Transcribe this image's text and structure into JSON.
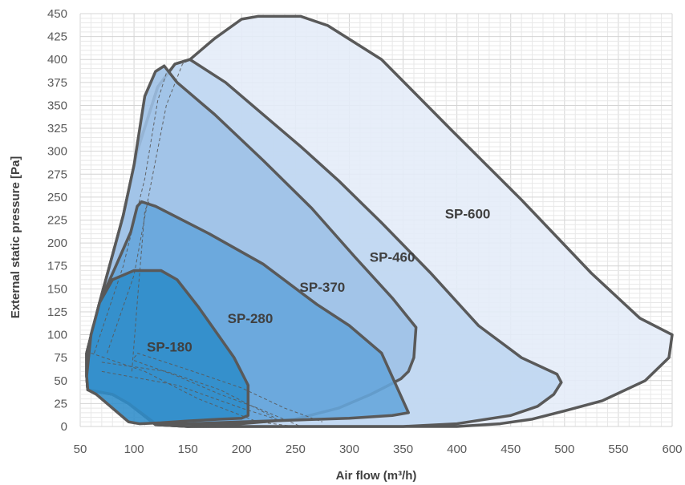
{
  "chart_data": {
    "type": "area",
    "xlabel": "Air flow (m³/h)",
    "ylabel": "External static pressure [Pa]",
    "xlim": [
      50,
      600
    ],
    "ylim": [
      0,
      450
    ],
    "x_ticks": [
      50,
      100,
      150,
      200,
      250,
      300,
      350,
      400,
      450,
      500,
      550,
      600
    ],
    "y_ticks": [
      0,
      25,
      50,
      75,
      100,
      125,
      150,
      175,
      200,
      225,
      250,
      275,
      300,
      325,
      350,
      375,
      400,
      425,
      450
    ],
    "grid": true,
    "series": [
      {
        "name": "SP-600",
        "color": "#e4ecf8",
        "label_pos": [
          410,
          232
        ],
        "points": [
          [
            56,
            80
          ],
          [
            68,
            135
          ],
          [
            90,
            230
          ],
          [
            103,
            300
          ],
          [
            122,
            370
          ],
          [
            138,
            395
          ],
          [
            152,
            400
          ],
          [
            175,
            423
          ],
          [
            200,
            444
          ],
          [
            215,
            447
          ],
          [
            255,
            447
          ],
          [
            280,
            437
          ],
          [
            330,
            400
          ],
          [
            395,
            323
          ],
          [
            460,
            247
          ],
          [
            525,
            167
          ],
          [
            570,
            118
          ],
          [
            600,
            100
          ],
          [
            597,
            75
          ],
          [
            575,
            50
          ],
          [
            535,
            28
          ],
          [
            500,
            17
          ],
          [
            470,
            8
          ],
          [
            440,
            3
          ],
          [
            400,
            0
          ],
          [
            350,
            0
          ],
          [
            300,
            0
          ],
          [
            250,
            0
          ],
          [
            200,
            0
          ],
          [
            150,
            0
          ],
          [
            120,
            2
          ],
          [
            95,
            25
          ],
          [
            80,
            35
          ],
          [
            57,
            40
          ],
          [
            56,
            55
          ],
          [
            56,
            80
          ]
        ]
      },
      {
        "name": "SP-460",
        "color": "#bed6f0",
        "label_pos": [
          340,
          185
        ],
        "points": [
          [
            56,
            80
          ],
          [
            68,
            135
          ],
          [
            90,
            230
          ],
          [
            103,
            300
          ],
          [
            122,
            370
          ],
          [
            138,
            395
          ],
          [
            152,
            400
          ],
          [
            185,
            375
          ],
          [
            215,
            345
          ],
          [
            255,
            305
          ],
          [
            290,
            268
          ],
          [
            330,
            222
          ],
          [
            375,
            168
          ],
          [
            420,
            110
          ],
          [
            460,
            75
          ],
          [
            493,
            57
          ],
          [
            497,
            48
          ],
          [
            490,
            35
          ],
          [
            475,
            22
          ],
          [
            450,
            12
          ],
          [
            400,
            3
          ],
          [
            350,
            0
          ],
          [
            300,
            0
          ],
          [
            250,
            0
          ],
          [
            200,
            0
          ],
          [
            150,
            0
          ],
          [
            120,
            2
          ],
          [
            95,
            25
          ],
          [
            80,
            35
          ],
          [
            57,
            40
          ],
          [
            56,
            55
          ],
          [
            56,
            80
          ]
        ]
      },
      {
        "name": "SP-370",
        "color": "#9dc0e6",
        "label_pos": [
          275,
          152
        ],
        "points": [
          [
            56,
            80
          ],
          [
            68,
            135
          ],
          [
            90,
            230
          ],
          [
            100,
            285
          ],
          [
            110,
            360
          ],
          [
            120,
            387
          ],
          [
            128,
            393
          ],
          [
            140,
            375
          ],
          [
            175,
            340
          ],
          [
            220,
            290
          ],
          [
            265,
            238
          ],
          [
            305,
            185
          ],
          [
            340,
            140
          ],
          [
            362,
            108
          ],
          [
            360,
            75
          ],
          [
            355,
            60
          ],
          [
            348,
            52
          ],
          [
            335,
            44
          ],
          [
            320,
            35
          ],
          [
            290,
            20
          ],
          [
            250,
            8
          ],
          [
            200,
            3
          ],
          [
            150,
            0
          ],
          [
            120,
            2
          ],
          [
            95,
            25
          ],
          [
            80,
            35
          ],
          [
            57,
            40
          ],
          [
            56,
            55
          ],
          [
            56,
            80
          ]
        ]
      },
      {
        "name": "SP-280",
        "color": "#64a5db",
        "label_pos": [
          208,
          118
        ],
        "points": [
          [
            56,
            80
          ],
          [
            68,
            135
          ],
          [
            82,
            172
          ],
          [
            97,
            212
          ],
          [
            103,
            240
          ],
          [
            107,
            245
          ],
          [
            120,
            240
          ],
          [
            170,
            210
          ],
          [
            220,
            177
          ],
          [
            270,
            133
          ],
          [
            300,
            110
          ],
          [
            330,
            80
          ],
          [
            355,
            15
          ],
          [
            340,
            12
          ],
          [
            300,
            9
          ],
          [
            250,
            7
          ],
          [
            200,
            5
          ],
          [
            150,
            3
          ],
          [
            120,
            3
          ],
          [
            95,
            25
          ],
          [
            80,
            35
          ],
          [
            57,
            40
          ],
          [
            56,
            55
          ],
          [
            56,
            80
          ]
        ]
      },
      {
        "name": "SP-180",
        "color": "#2e8cca",
        "label_pos": [
          133,
          87
        ],
        "points": [
          [
            57,
            40
          ],
          [
            56,
            55
          ],
          [
            60,
            100
          ],
          [
            68,
            135
          ],
          [
            80,
            160
          ],
          [
            100,
            170
          ],
          [
            125,
            170
          ],
          [
            140,
            160
          ],
          [
            160,
            130
          ],
          [
            178,
            100
          ],
          [
            193,
            75
          ],
          [
            206,
            45
          ],
          [
            206,
            12
          ],
          [
            200,
            9
          ],
          [
            180,
            8
          ],
          [
            150,
            6
          ],
          [
            125,
            4
          ],
          [
            105,
            3
          ],
          [
            95,
            5
          ],
          [
            80,
            20
          ],
          [
            65,
            35
          ],
          [
            57,
            40
          ]
        ]
      }
    ],
    "dashed_lines": [
      [
        [
          63,
          80
        ],
        [
          90,
          175
        ],
        [
          110,
          270
        ],
        [
          122,
          355
        ],
        [
          130,
          385
        ],
        [
          138,
          395
        ]
      ],
      [
        [
          75,
          80
        ],
        [
          100,
          165
        ],
        [
          115,
          260
        ],
        [
          130,
          350
        ],
        [
          145,
          395
        ],
        [
          152,
          400
        ]
      ],
      [
        [
          98,
          60
        ],
        [
          104,
          150
        ],
        [
          110,
          235
        ],
        [
          114,
          245
        ]
      ],
      [
        [
          100,
          75
        ],
        [
          104,
          80
        ]
      ],
      [
        [
          60,
          80
        ],
        [
          110,
          60
        ],
        [
          160,
          30
        ],
        [
          215,
          5
        ],
        [
          250,
          0
        ]
      ],
      [
        [
          70,
          60
        ],
        [
          140,
          45
        ],
        [
          200,
          20
        ],
        [
          240,
          5
        ]
      ],
      [
        [
          70,
          70
        ],
        [
          130,
          60
        ],
        [
          180,
          40
        ],
        [
          230,
          10
        ]
      ],
      [
        [
          103,
          80
        ],
        [
          150,
          62
        ],
        [
          200,
          42
        ],
        [
          240,
          20
        ],
        [
          275,
          5
        ]
      ],
      [
        [
          100,
          72
        ],
        [
          140,
          55
        ],
        [
          180,
          35
        ],
        [
          215,
          20
        ],
        [
          255,
          0
        ]
      ]
    ]
  }
}
